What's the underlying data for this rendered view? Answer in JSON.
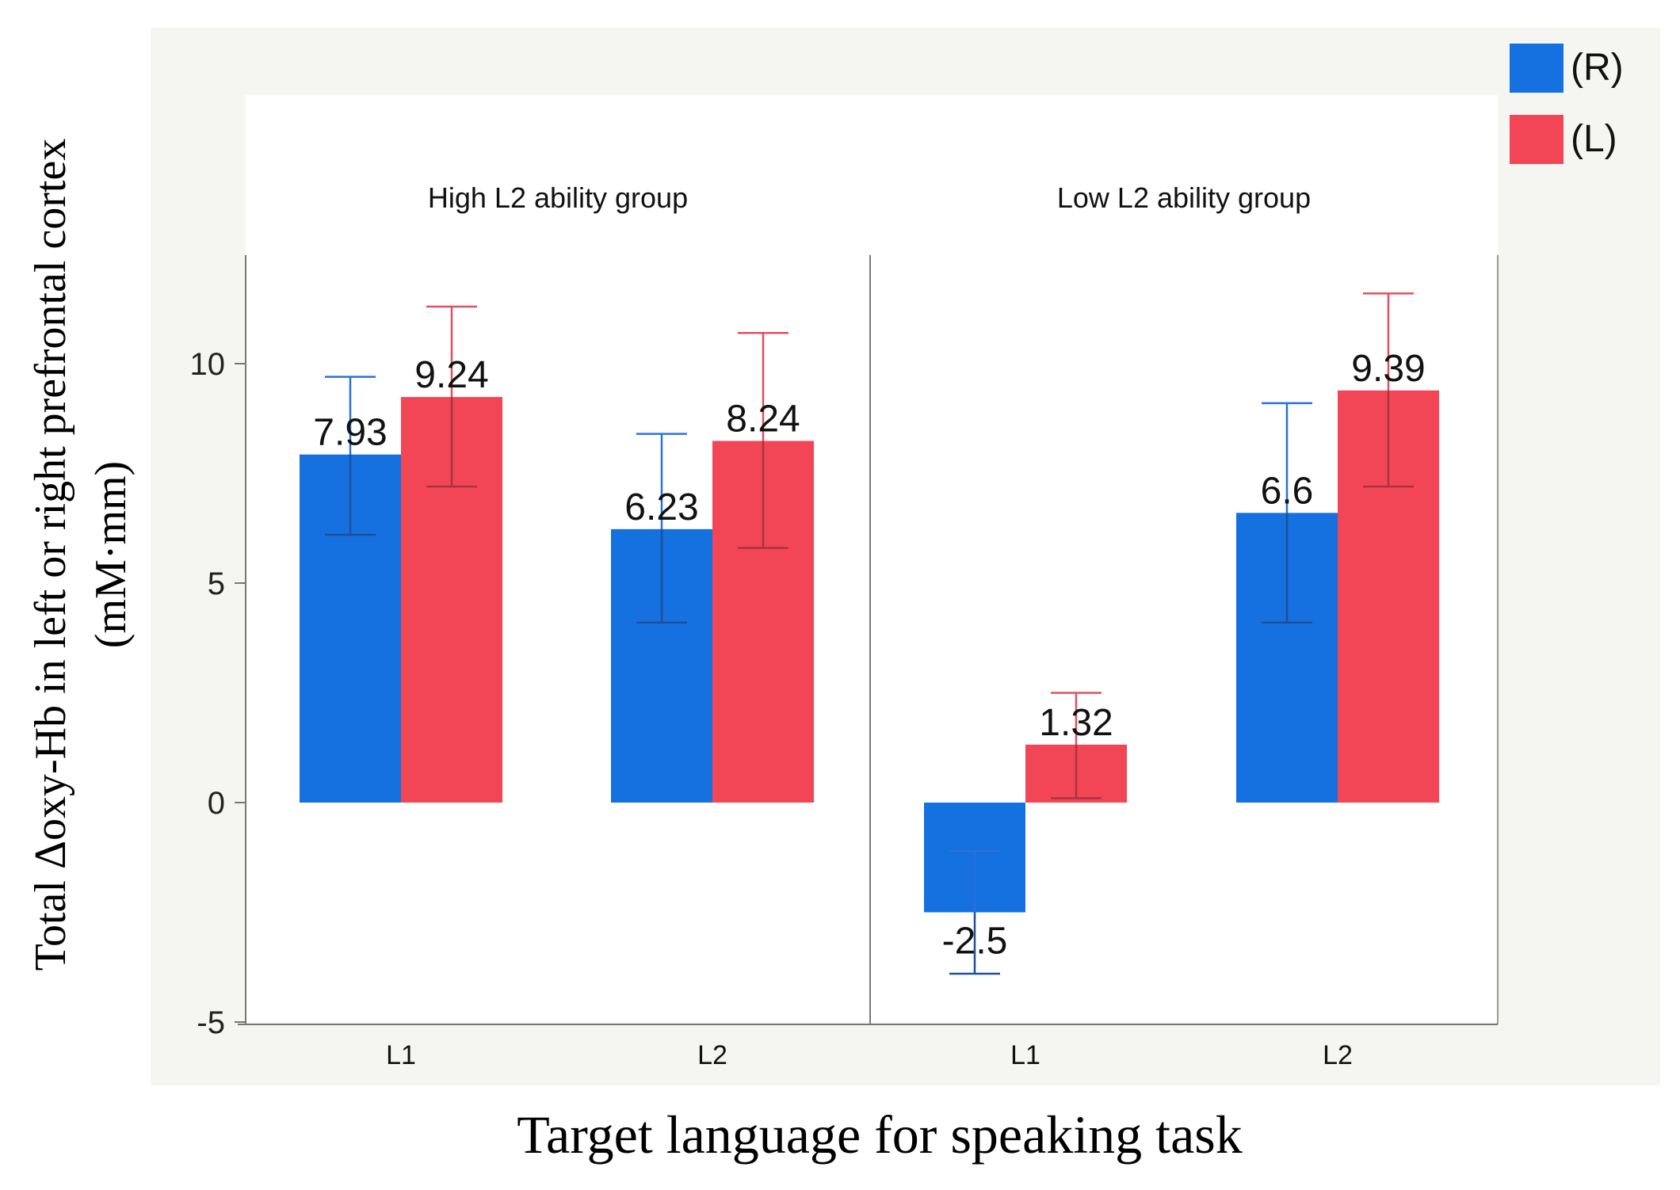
{
  "chart_data": {
    "type": "bar",
    "ylabel_line1": "Total Δoxy-Hb in left or right prefrontal cortex",
    "ylabel_line2": "(mM·mm)",
    "xlabel": "Target language for speaking task",
    "ylim": [
      -5,
      12.5
    ],
    "yticks": [
      -5,
      0,
      5,
      10
    ],
    "legend_position": "top-right",
    "series": [
      {
        "name": "(R)",
        "color": "#1570e0"
      },
      {
        "name": "(L)",
        "color": "#f24657"
      }
    ],
    "panels": [
      {
        "title": "High L2 ability group",
        "categories": [
          "L1",
          "L2"
        ],
        "values": {
          "(R)": [
            7.93,
            6.23
          ],
          "(L)": [
            9.24,
            8.24
          ]
        },
        "labels": {
          "(R)": [
            "7.93",
            "6.23"
          ],
          "(L)": [
            "9.24",
            "8.24"
          ]
        },
        "error_low": {
          "(R)": [
            6.1,
            4.1
          ],
          "(L)": [
            7.2,
            5.8
          ]
        },
        "error_high": {
          "(R)": [
            9.7,
            8.4
          ],
          "(L)": [
            11.3,
            10.7
          ]
        }
      },
      {
        "title": "Low L2 ability group",
        "categories": [
          "L1",
          "L2"
        ],
        "values": {
          "(R)": [
            -2.5,
            6.6
          ],
          "(L)": [
            1.32,
            9.39
          ]
        },
        "labels": {
          "(R)": [
            "-2.5",
            "6.6"
          ],
          "(L)": [
            "1.32",
            "9.39"
          ]
        },
        "error_low": {
          "(R)": [
            -3.9,
            4.1
          ],
          "(L)": [
            0.1,
            7.2
          ]
        },
        "error_high": {
          "(R)": [
            -1.1,
            9.1
          ],
          "(L)": [
            2.5,
            11.6
          ]
        }
      }
    ]
  }
}
